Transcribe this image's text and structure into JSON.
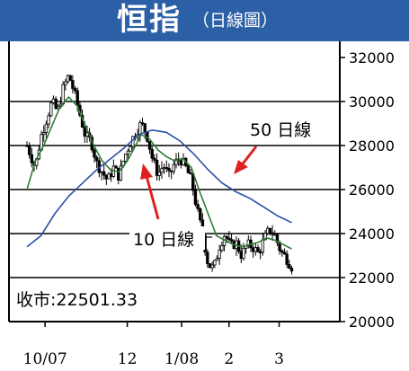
{
  "header": {
    "title": "恒指",
    "subtitle": "（日線圖）"
  },
  "chart_data": {
    "type": "candlestick",
    "title": "恒指",
    "subtitle": "（日線圖）",
    "ylim": [
      20000,
      32000
    ],
    "y_ticks": [
      20000,
      22000,
      24000,
      26000,
      28000,
      30000,
      32000
    ],
    "y_tick_labels": [
      "20000",
      "22000",
      "24000",
      "26000",
      "28000",
      "30000",
      "32000"
    ],
    "gridlines": [
      22000,
      24000,
      26000,
      28000,
      30000
    ],
    "x_tick_labels": [
      {
        "label": "10/07",
        "t": 0.065
      },
      {
        "label": "12",
        "t": 0.36
      },
      {
        "label": "1/08",
        "t": 0.555
      },
      {
        "label": "2",
        "t": 0.725
      },
      {
        "label": "3",
        "t": 0.905
      }
    ],
    "annotations": {
      "ma50_label": "50 日線",
      "ma10_label": "10 日線",
      "close_label": "收市:22501.33"
    },
    "close_value": 22501.33,
    "series": [
      {
        "name": "price",
        "points": [
          [
            0,
            28000
          ],
          [
            0.03,
            27000
          ],
          [
            0.05,
            28400
          ],
          [
            0.07,
            29200
          ],
          [
            0.09,
            30000
          ],
          [
            0.11,
            29500
          ],
          [
            0.13,
            30600
          ],
          [
            0.15,
            31200
          ],
          [
            0.17,
            30400
          ],
          [
            0.19,
            29400
          ],
          [
            0.21,
            28400
          ],
          [
            0.23,
            28200
          ],
          [
            0.25,
            27200
          ],
          [
            0.27,
            26800
          ],
          [
            0.29,
            26400
          ],
          [
            0.31,
            27000
          ],
          [
            0.33,
            26600
          ],
          [
            0.35,
            27500
          ],
          [
            0.37,
            28100
          ],
          [
            0.39,
            28600
          ],
          [
            0.41,
            29000
          ],
          [
            0.43,
            28500
          ],
          [
            0.45,
            27400
          ],
          [
            0.47,
            26700
          ],
          [
            0.49,
            27100
          ],
          [
            0.51,
            26600
          ],
          [
            0.53,
            27200
          ],
          [
            0.55,
            27400
          ],
          [
            0.57,
            27000
          ],
          [
            0.59,
            26400
          ],
          [
            0.61,
            25100
          ],
          [
            0.63,
            24000
          ],
          [
            0.65,
            22600
          ],
          [
            0.67,
            22400
          ],
          [
            0.69,
            23400
          ],
          [
            0.71,
            24000
          ],
          [
            0.73,
            23400
          ],
          [
            0.75,
            23600
          ],
          [
            0.77,
            23000
          ],
          [
            0.79,
            23500
          ],
          [
            0.81,
            23400
          ],
          [
            0.83,
            23100
          ],
          [
            0.85,
            23700
          ],
          [
            0.87,
            24200
          ],
          [
            0.89,
            23900
          ],
          [
            0.91,
            23200
          ],
          [
            0.93,
            22900
          ],
          [
            0.95,
            22500
          ]
        ]
      },
      {
        "name": "10 日線",
        "points": [
          [
            0,
            26000
          ],
          [
            0.03,
            27300
          ],
          [
            0.06,
            28000
          ],
          [
            0.09,
            28900
          ],
          [
            0.12,
            29800
          ],
          [
            0.15,
            30200
          ],
          [
            0.18,
            29800
          ],
          [
            0.21,
            28900
          ],
          [
            0.24,
            28000
          ],
          [
            0.27,
            27300
          ],
          [
            0.3,
            26900
          ],
          [
            0.33,
            26800
          ],
          [
            0.36,
            27300
          ],
          [
            0.39,
            28000
          ],
          [
            0.41,
            28500
          ],
          [
            0.44,
            28300
          ],
          [
            0.47,
            27800
          ],
          [
            0.5,
            27500
          ],
          [
            0.53,
            27300
          ],
          [
            0.56,
            27400
          ],
          [
            0.59,
            27000
          ],
          [
            0.62,
            25900
          ],
          [
            0.65,
            24900
          ],
          [
            0.68,
            23900
          ],
          [
            0.71,
            23700
          ],
          [
            0.74,
            23500
          ],
          [
            0.77,
            23400
          ],
          [
            0.8,
            23500
          ],
          [
            0.83,
            23600
          ],
          [
            0.86,
            23800
          ],
          [
            0.89,
            23700
          ],
          [
            0.92,
            23500
          ],
          [
            0.95,
            23300
          ]
        ]
      },
      {
        "name": "50 日線",
        "points": [
          [
            0,
            23400
          ],
          [
            0.05,
            23900
          ],
          [
            0.1,
            24900
          ],
          [
            0.15,
            25700
          ],
          [
            0.2,
            26300
          ],
          [
            0.25,
            26900
          ],
          [
            0.3,
            27400
          ],
          [
            0.35,
            27900
          ],
          [
            0.4,
            28500
          ],
          [
            0.45,
            28700
          ],
          [
            0.5,
            28600
          ],
          [
            0.55,
            28200
          ],
          [
            0.6,
            27600
          ],
          [
            0.65,
            26900
          ],
          [
            0.7,
            26300
          ],
          [
            0.75,
            25900
          ],
          [
            0.8,
            25600
          ],
          [
            0.85,
            25200
          ],
          [
            0.9,
            24800
          ],
          [
            0.95,
            24500
          ]
        ]
      }
    ]
  }
}
